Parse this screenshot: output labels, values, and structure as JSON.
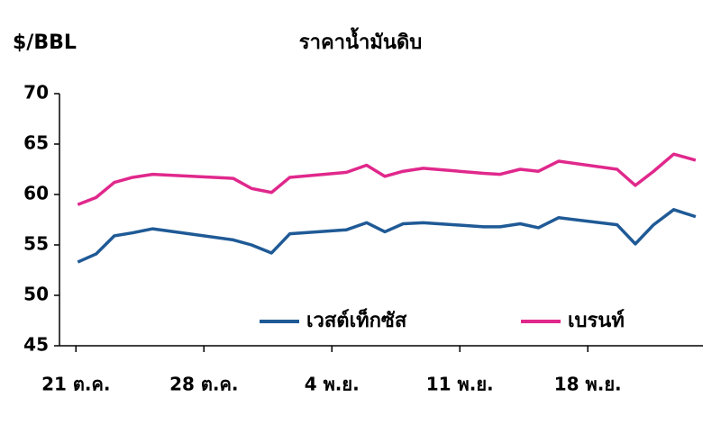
{
  "chart_data": {
    "type": "line",
    "title": "ราคาน้ำมันดิบ",
    "y_label": "$/BBL",
    "x": [
      0.1,
      1.1,
      2.1,
      3.1,
      4.2,
      8.6,
      9.6,
      10.7,
      11.7,
      14.8,
      15.9,
      16.9,
      17.9,
      19.0,
      22.3,
      23.2,
      24.3,
      25.3,
      26.4,
      29.6,
      30.6,
      31.6,
      32.7,
      33.9
    ],
    "series": [
      {
        "name": "เวสต์เท็กซัส",
        "color": "#1f5a96",
        "values": [
          53.3,
          54.1,
          55.9,
          56.2,
          56.6,
          55.5,
          55.0,
          54.2,
          56.1,
          56.5,
          57.2,
          56.3,
          57.1,
          57.2,
          56.8,
          56.8,
          57.1,
          56.7,
          57.7,
          57.0,
          55.1,
          57.0,
          58.5,
          57.8
        ]
      },
      {
        "name": "เบรนท์",
        "color": "#e0288c",
        "values": [
          59.0,
          59.7,
          61.2,
          61.7,
          62.0,
          61.6,
          60.6,
          60.2,
          61.7,
          62.2,
          62.9,
          61.8,
          62.3,
          62.6,
          62.1,
          62.0,
          62.5,
          62.3,
          63.3,
          62.5,
          60.9,
          62.3,
          64.0,
          63.4
        ]
      }
    ],
    "xlim": [
      -0.9,
      34.3
    ],
    "xticks": [
      {
        "value": 0,
        "label": "21 ต.ค."
      },
      {
        "value": 7,
        "label": "28 ต.ค."
      },
      {
        "value": 14,
        "label": "4 พ.ย."
      },
      {
        "value": 21,
        "label": "11 พ.ย."
      },
      {
        "value": 28,
        "label": "18 พ.ย."
      }
    ],
    "ylim": [
      45,
      70
    ],
    "yticks": [
      45,
      50,
      55,
      60,
      65,
      70
    ],
    "grid": false
  }
}
